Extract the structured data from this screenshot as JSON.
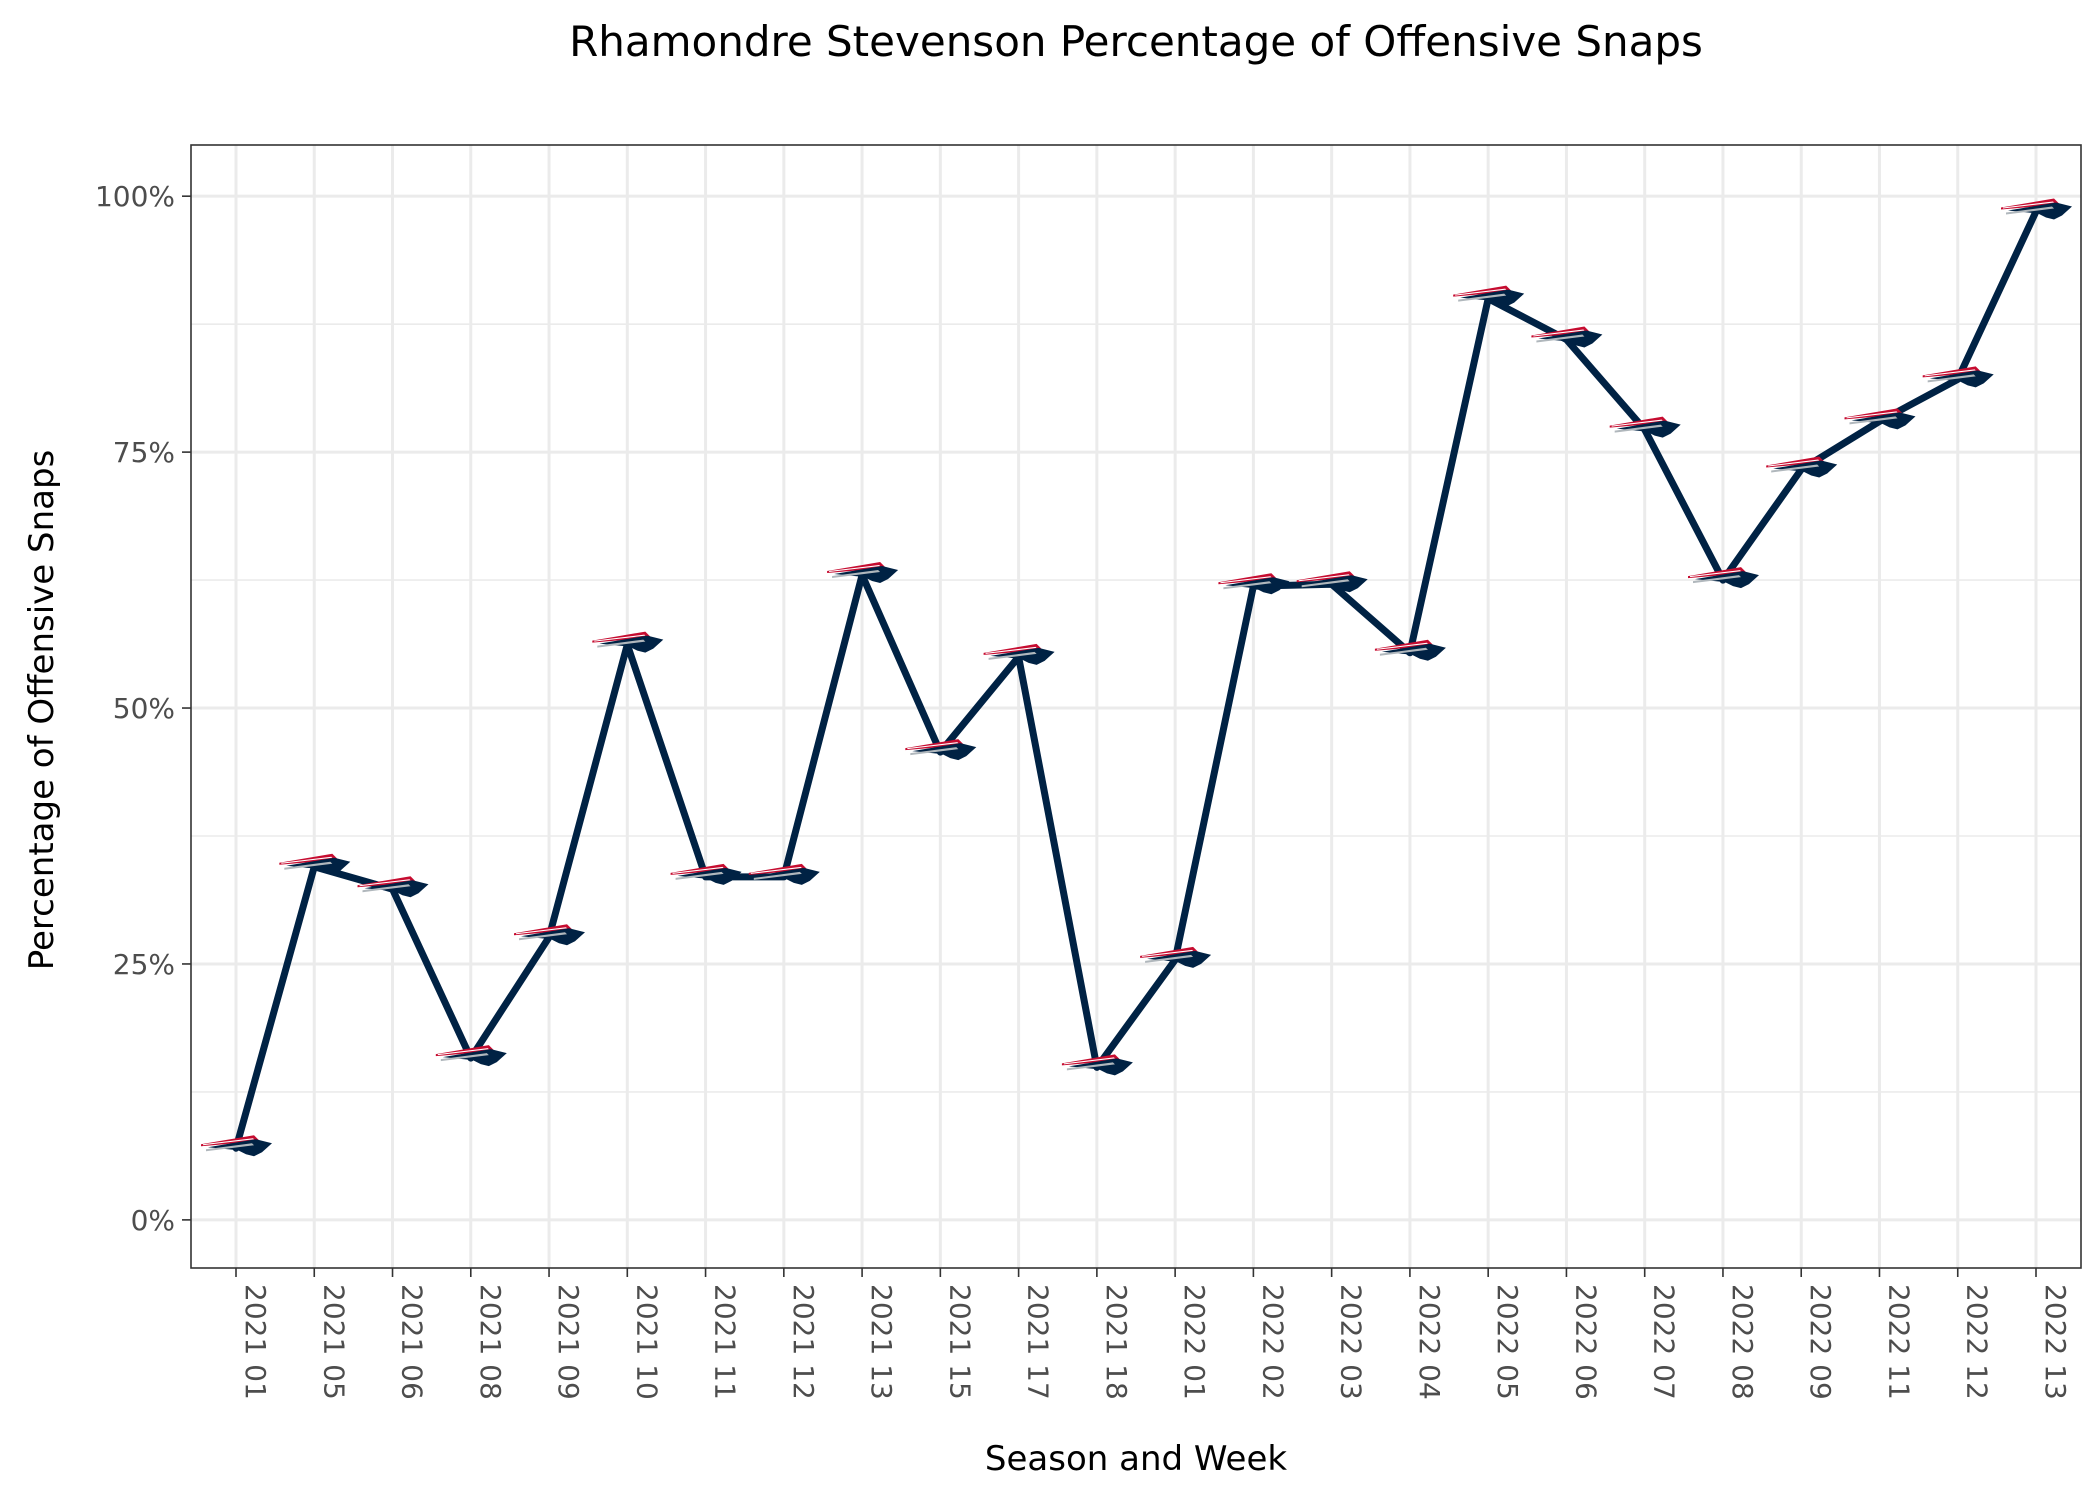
{
  "chart_data": {
    "type": "line",
    "title": "Rhamondre Stevenson Percentage of Offensive Snaps",
    "xlabel": "Season and Week",
    "ylabel": "Percentage of Offensive Snaps",
    "categories": [
      "2021 01",
      "2021 05",
      "2021 06",
      "2021 08",
      "2021 09",
      "2021 10",
      "2021 11",
      "2021 12",
      "2021 13",
      "2021 15",
      "2021 17",
      "2021 18",
      "2022 01",
      "2022 02",
      "2022 03",
      "2022 04",
      "2022 05",
      "2022 06",
      "2022 07",
      "2022 08",
      "2022 09",
      "2022 11",
      "2022 12",
      "2022 13"
    ],
    "values": [
      7,
      34.5,
      32.3,
      15.8,
      27.6,
      56.2,
      33.5,
      33.5,
      63.0,
      45.7,
      55.0,
      14.9,
      25.4,
      61.9,
      62.1,
      55.4,
      90.0,
      86.0,
      77.2,
      62.5,
      73.3,
      78.0,
      82.1,
      98.5
    ],
    "ylim": [
      -4.7,
      105
    ],
    "yticks": [
      0,
      25,
      50,
      75,
      100
    ],
    "ytick_labels": [
      "0%",
      "25%",
      "50%",
      "75%",
      "100%"
    ],
    "grid": true,
    "legend": "none",
    "colors": {
      "line": "#002244",
      "marker_navy": "#002244",
      "marker_red": "#c60c30",
      "marker_silver": "#b0b7bc",
      "grid": "#ebebeb",
      "panel_border": "#333333"
    },
    "marker_icon": "patriots-logo-icon"
  }
}
